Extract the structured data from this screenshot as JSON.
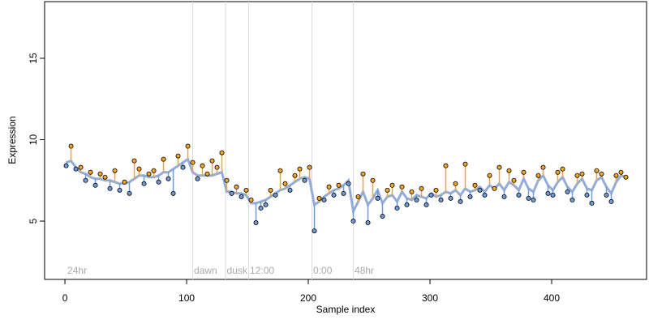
{
  "chart_data": {
    "type": "scatter",
    "x_label": "Sample index",
    "y_label": "Expression",
    "xlim": [
      -16.7,
      478
    ],
    "ylim": [
      1.42,
      18.48
    ],
    "xticks": [
      0,
      100,
      200,
      300,
      400
    ],
    "yticks": [
      5,
      10,
      15
    ],
    "above_color": "#f5a623",
    "below_color": "#6f9bd8",
    "fit_color": "#93acd8",
    "vlines": [
      105,
      132,
      151,
      203,
      237
    ],
    "annotations": [
      {
        "x": 2,
        "label": "24hr"
      },
      {
        "x": 106,
        "label": "dawn"
      },
      {
        "x": 133,
        "label": "dusk"
      },
      {
        "x": 152,
        "label": "12:00"
      },
      {
        "x": 204,
        "label": "0:00"
      },
      {
        "x": 238,
        "label": "48hr"
      }
    ],
    "x": [
      1,
      5,
      9,
      13,
      17,
      21,
      25,
      29,
      33,
      37,
      41,
      45,
      49,
      53,
      57,
      61,
      65,
      69,
      73,
      77,
      81,
      85,
      89,
      93,
      97,
      101,
      105,
      109,
      113,
      117,
      121,
      125,
      129,
      133,
      137,
      141,
      145,
      149,
      153,
      157,
      161,
      165,
      169,
      173,
      177,
      181,
      185,
      189,
      193,
      197,
      201,
      205,
      209,
      213,
      217,
      221,
      225,
      229,
      233,
      237,
      241,
      245,
      249,
      253,
      257,
      261,
      265,
      269,
      273,
      277,
      281,
      285,
      289,
      293,
      297,
      301,
      305,
      309,
      313,
      317,
      321,
      325,
      329,
      333,
      337,
      341,
      345,
      349,
      353,
      357,
      361,
      365,
      369,
      373,
      377,
      381,
      385,
      389,
      393,
      397,
      401,
      405,
      409,
      413,
      417,
      421,
      425,
      429,
      433,
      437,
      441,
      445,
      449,
      453,
      457,
      461
    ],
    "fit": [
      8.6,
      8.7,
      8.3,
      8.0,
      7.9,
      7.7,
      7.6,
      7.6,
      7.5,
      7.5,
      7.4,
      7.3,
      7.3,
      7.4,
      7.6,
      7.8,
      7.8,
      7.7,
      7.7,
      7.8,
      8.0,
      8.0,
      8.2,
      8.4,
      8.6,
      8.8,
      8.0,
      7.8,
      7.8,
      7.8,
      7.8,
      7.9,
      8.0,
      6.8,
      6.8,
      6.7,
      6.7,
      6.6,
      6.1,
      6.1,
      6.2,
      6.3,
      6.5,
      6.7,
      6.9,
      7.0,
      7.2,
      7.4,
      7.6,
      7.7,
      7.6,
      6.0,
      6.2,
      6.5,
      6.7,
      6.9,
      7.0,
      7.2,
      7.5,
      5.6,
      6.2,
      6.8,
      6.0,
      6.4,
      6.9,
      6.1,
      6.5,
      6.6,
      6.2,
      6.8,
      6.4,
      6.3,
      6.6,
      6.5,
      6.4,
      6.7,
      6.5,
      6.6,
      6.8,
      6.7,
      6.9,
      6.6,
      7.0,
      6.8,
      6.9,
      7.1,
      6.8,
      7.2,
      7.0,
      7.3,
      6.9,
      7.4,
      7.2,
      6.9,
      7.6,
      7.0,
      6.8,
      7.5,
      7.8,
      7.2,
      6.9,
      7.4,
      7.7,
      7.1,
      6.8,
      7.3,
      7.6,
      7.0,
      6.9,
      7.5,
      7.7,
      7.1,
      6.7,
      7.4,
      7.8,
      7.7
    ],
    "values": [
      8.4,
      9.6,
      8.2,
      8.3,
      7.5,
      8.0,
      7.2,
      7.9,
      7.7,
      7.0,
      8.1,
      6.9,
      7.4,
      6.7,
      8.7,
      8.2,
      7.3,
      7.9,
      8.1,
      7.4,
      8.8,
      7.6,
      6.7,
      9.0,
      8.3,
      9.6,
      8.6,
      7.6,
      8.4,
      7.9,
      8.7,
      8.3,
      9.2,
      7.5,
      6.7,
      7.1,
      6.5,
      6.9,
      6.3,
      4.9,
      5.8,
      6.0,
      6.9,
      6.6,
      8.1,
      7.3,
      6.9,
      7.8,
      8.2,
      7.5,
      8.3,
      4.4,
      6.4,
      6.3,
      7.1,
      6.6,
      7.2,
      6.7,
      7.3,
      5.0,
      6.5,
      7.9,
      4.9,
      7.5,
      6.4,
      5.3,
      6.9,
      7.2,
      5.8,
      7.1,
      6.0,
      6.8,
      6.3,
      7.0,
      6.0,
      6.6,
      6.9,
      6.3,
      8.4,
      6.4,
      7.3,
      6.2,
      8.5,
      6.5,
      7.2,
      6.9,
      6.6,
      7.8,
      7.0,
      8.3,
      6.5,
      8.1,
      7.5,
      6.6,
      8.0,
      6.4,
      6.3,
      7.8,
      8.3,
      6.7,
      6.6,
      8.0,
      8.2,
      6.8,
      6.3,
      7.8,
      7.9,
      6.6,
      6.1,
      8.1,
      7.9,
      6.6,
      6.2,
      7.8,
      8.0,
      7.7
    ]
  }
}
